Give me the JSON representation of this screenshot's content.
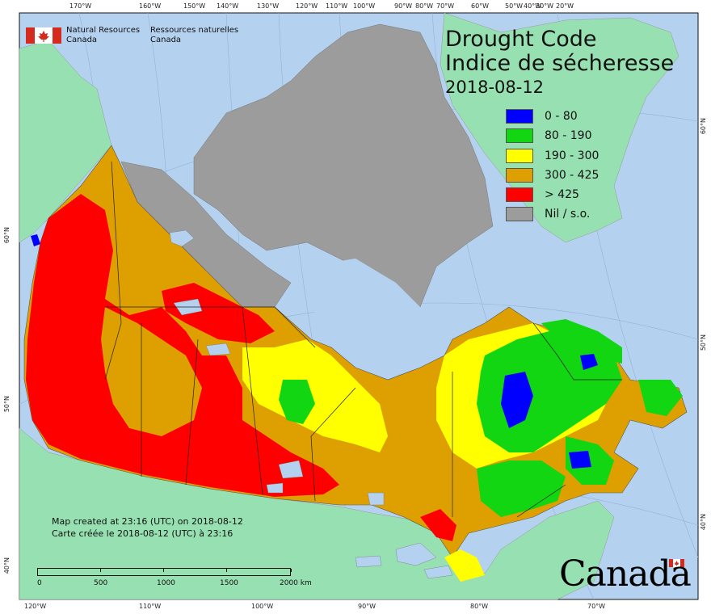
{
  "titles": {
    "en": "Drought Code",
    "fr": "Indice de sécheresse",
    "date": "2018-08-12"
  },
  "agency": {
    "en_line1": "Natural Resources",
    "en_line2": "Canada",
    "fr_line1": "Ressources naturelles",
    "fr_line2": "Canada"
  },
  "legend": [
    {
      "label": "0 - 80",
      "color": "#0000ff"
    },
    {
      "label": "80 - 190",
      "color": "#11d611"
    },
    {
      "label": "190 - 300",
      "color": "#ffff00"
    },
    {
      "label": "300 - 425",
      "color": "#dda000"
    },
    {
      "label": "> 425",
      "color": "#ff0000"
    },
    {
      "label": "Nil / s.o.",
      "color": "#9c9c9c"
    }
  ],
  "credit": {
    "en": "Map created at 23:16 (UTC) on 2018-08-12",
    "fr": "Carte créée le 2018-08-12 (UTC) à 23:16"
  },
  "scale": {
    "labels": [
      "0",
      "500",
      "1000",
      "1500",
      "2000  km"
    ]
  },
  "graticule": {
    "top": [
      "170°W",
      "160°W",
      "150°W",
      "140°W",
      "130°W",
      "120°W",
      "110°W",
      "100°W",
      "90°W",
      "80°W",
      "70°W",
      "60°W",
      "50°W",
      "40°W",
      "30°W",
      "20°W"
    ],
    "bottom": [
      "120°W",
      "110°W",
      "100°W",
      "90°W",
      "80°W",
      "70°W"
    ],
    "left": [
      "60°N",
      "50°N",
      "40°N"
    ],
    "right": [
      "60°N",
      "50°N",
      "40°N"
    ]
  },
  "wordmark": "Canada",
  "colors": {
    "ocean": "#b4d2ef",
    "land_other": "#96e0b2",
    "border": "#222222"
  }
}
